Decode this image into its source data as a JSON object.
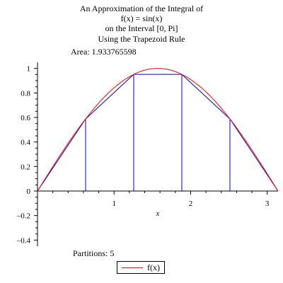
{
  "chart_data": {
    "type": "line",
    "title_lines": [
      "An Approximation of the Integral of",
      "f(x) = sin(x)",
      "on the Interval [0, Pi]",
      "Using the Trapezoid Rule"
    ],
    "area_text": "Area: 1.933765598",
    "partitions_text": "Partitions: 5",
    "xlabel": "x",
    "ylabel": "",
    "xlim": [
      0,
      3.14159265
    ],
    "ylim": [
      -0.45,
      1.05
    ],
    "x_ticks": [
      1,
      2,
      3
    ],
    "y_ticks": [
      -0.4,
      -0.2,
      0,
      0.2,
      0.4,
      0.6,
      0.8,
      1
    ],
    "x_tick_labels": [
      "1",
      "2",
      "3"
    ],
    "y_tick_labels": [
      "–0.4",
      "–0.2",
      "0",
      "0.2",
      "0.4",
      "0.6",
      "0.8",
      "1"
    ],
    "series": [
      {
        "name": "f(x)",
        "kind": "function",
        "function": "sin(x)",
        "color": "#ff0000"
      },
      {
        "kind": "trapezoids",
        "color": "#0000aa",
        "x": [
          0,
          0.6283185,
          1.2566371,
          1.8849556,
          2.5132741,
          3.1415927
        ],
        "y": [
          0,
          0.5877853,
          0.9510565,
          0.9510565,
          0.5877853,
          0
        ]
      }
    ],
    "legend": {
      "position": "bottom-center",
      "entries": [
        "f(x)"
      ]
    },
    "grid": false
  }
}
